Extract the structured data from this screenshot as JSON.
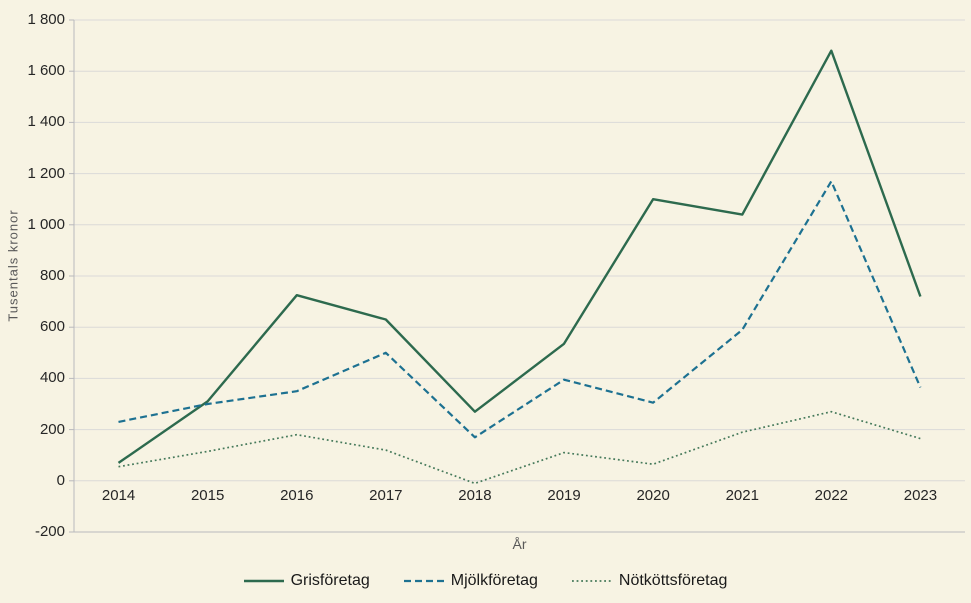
{
  "chart_data": {
    "type": "line",
    "title": "",
    "xlabel": "År",
    "ylabel": "Tusentals  kronor",
    "categories": [
      "2014",
      "2015",
      "2016",
      "2017",
      "2018",
      "2019",
      "2020",
      "2021",
      "2022",
      "2023"
    ],
    "series": [
      {
        "name": "Grisföretag",
        "style": "solid",
        "color": "#2d6a4e",
        "width": 2.4,
        "values": [
          70,
          310,
          725,
          630,
          270,
          535,
          1100,
          1040,
          1680,
          720
        ]
      },
      {
        "name": "Mjölkföretag",
        "style": "dashed",
        "color": "#1d7191",
        "width": 2.2,
        "values": [
          230,
          300,
          350,
          500,
          170,
          395,
          305,
          590,
          1170,
          365
        ]
      },
      {
        "name": "Nötköttsföretag",
        "style": "dotted",
        "color": "#45795a",
        "width": 1.7,
        "values": [
          55,
          115,
          180,
          120,
          -10,
          110,
          65,
          190,
          270,
          165
        ]
      }
    ],
    "ylim": [
      -200,
      1800
    ],
    "y_ticks": [
      {
        "value": -200,
        "label": "-200"
      },
      {
        "value": 0,
        "label": "0"
      },
      {
        "value": 200,
        "label": "200"
      },
      {
        "value": 400,
        "label": "400"
      },
      {
        "value": 600,
        "label": "600"
      },
      {
        "value": 800,
        "label": "800"
      },
      {
        "value": 1000,
        "label": "1 000"
      },
      {
        "value": 1200,
        "label": "1 200"
      },
      {
        "value": 1400,
        "label": "1 400"
      },
      {
        "value": 1600,
        "label": "1 600"
      },
      {
        "value": 1800,
        "label": "1 800"
      }
    ],
    "grid": true,
    "legend_position": "bottom"
  },
  "colors": {
    "background": "#f7f3e3",
    "gridline": "#dbdad8",
    "axis": "#b9b9bc",
    "tick_text": "#262626",
    "muted_text": "#595959"
  }
}
